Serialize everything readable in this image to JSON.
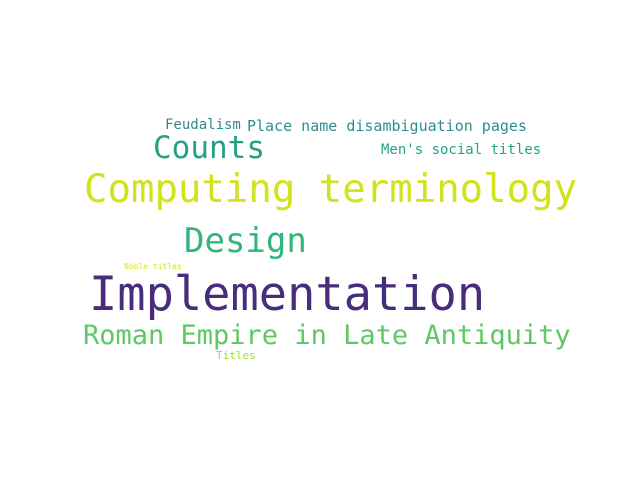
{
  "words": [
    {
      "key": "feudalism",
      "text": "Feudalism",
      "color": "#2c8a8a"
    },
    {
      "key": "place",
      "text": "Place name disambiguation pages",
      "color": "#2b8e8c"
    },
    {
      "key": "counts",
      "text": "Counts",
      "color": "#26a083"
    },
    {
      "key": "mens",
      "text": "Men's social titles",
      "color": "#26a189"
    },
    {
      "key": "computing",
      "text": "Computing terminology",
      "color": "#d2e21b"
    },
    {
      "key": "design",
      "text": "Design",
      "color": "#31b57b"
    },
    {
      "key": "noble",
      "text": "Noble titles",
      "color": "#d8e219"
    },
    {
      "key": "implementation",
      "text": "Implementation",
      "color": "#472d7b"
    },
    {
      "key": "roman",
      "text": "Roman Empire in Late Antiquity",
      "color": "#5ec962"
    },
    {
      "key": "titles",
      "text": "Titles",
      "color": "#a0da39"
    }
  ]
}
